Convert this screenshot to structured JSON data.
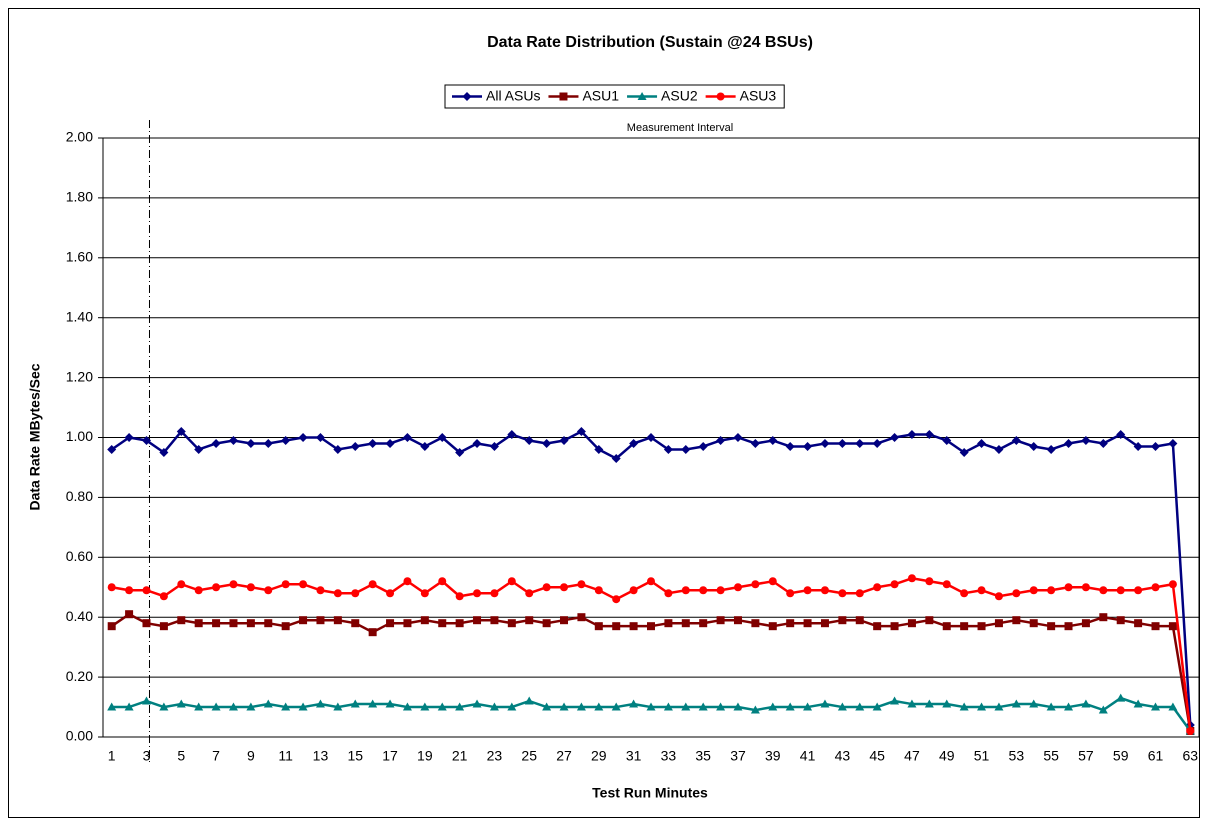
{
  "chart_data": {
    "type": "line",
    "title": "Data Rate Distribution (Sustain @24 BSUs)",
    "x_label": "Test Run Minutes",
    "y_label": "Data Rate MBytes/Sec",
    "annotation": {
      "text": "Measurement Interval",
      "x": "3"
    },
    "categories": [
      "1",
      null,
      "3",
      null,
      "5",
      null,
      "7",
      null,
      "9",
      null,
      "11",
      null,
      "13",
      null,
      "15",
      null,
      "17",
      null,
      "19",
      null,
      "21",
      null,
      "23",
      null,
      "25",
      null,
      "27",
      null,
      "29",
      null,
      "31",
      null,
      "33",
      null,
      "35",
      null,
      "37",
      null,
      "39",
      null,
      "41",
      null,
      "43",
      null,
      "45",
      null,
      "47",
      null,
      "49",
      null,
      "51",
      null,
      "53",
      null,
      "55",
      null,
      "57",
      null,
      "59",
      null,
      "61",
      null,
      "63"
    ],
    "ylim": [
      0,
      2
    ],
    "yticks": [
      {
        "value": 0,
        "label": "0.00"
      },
      {
        "value": 0.2,
        "label": "0.20"
      },
      {
        "value": 0.4,
        "label": "0.40"
      },
      {
        "value": 0.6,
        "label": "0.60"
      },
      {
        "value": 0.8,
        "label": "0.80"
      },
      {
        "value": 1,
        "label": "1.00"
      },
      {
        "value": 1.2,
        "label": "1.20"
      },
      {
        "value": 1.4,
        "label": "1.40"
      },
      {
        "value": 1.6,
        "label": "1.60"
      },
      {
        "value": 1.8,
        "label": "1.80"
      },
      {
        "value": 2,
        "label": "2.00"
      }
    ],
    "grid": true,
    "legend": "top",
    "series": [
      {
        "name": "All ASUs",
        "color": "#000080",
        "marker": "diamond",
        "values": [
          0.96,
          1.0,
          0.99,
          0.95,
          1.02,
          0.96,
          0.98,
          0.99,
          0.98,
          0.98,
          0.99,
          1.0,
          1.0,
          0.96,
          0.97,
          0.98,
          0.98,
          1.0,
          0.97,
          1.0,
          0.95,
          0.98,
          0.97,
          1.01,
          0.99,
          0.98,
          0.99,
          1.02,
          0.96,
          0.93,
          0.98,
          1.0,
          0.96,
          0.96,
          0.97,
          0.99,
          1.0,
          0.98,
          0.99,
          0.97,
          0.97,
          0.98,
          0.98,
          0.98,
          0.98,
          1.0,
          1.01,
          1.01,
          0.99,
          0.95,
          0.98,
          0.96,
          0.99,
          0.97,
          0.96,
          0.98,
          0.99,
          0.98,
          1.01,
          0.97,
          0.97,
          0.98,
          0.04
        ]
      },
      {
        "name": "ASU1",
        "color": "#800000",
        "marker": "square",
        "values": [
          0.37,
          0.41,
          0.38,
          0.37,
          0.39,
          0.38,
          0.38,
          0.38,
          0.38,
          0.38,
          0.37,
          0.39,
          0.39,
          0.39,
          0.38,
          0.35,
          0.38,
          0.38,
          0.39,
          0.38,
          0.38,
          0.39,
          0.39,
          0.38,
          0.39,
          0.38,
          0.39,
          0.4,
          0.37,
          0.37,
          0.37,
          0.37,
          0.38,
          0.38,
          0.38,
          0.39,
          0.39,
          0.38,
          0.37,
          0.38,
          0.38,
          0.38,
          0.39,
          0.39,
          0.37,
          0.37,
          0.38,
          0.39,
          0.37,
          0.37,
          0.37,
          0.38,
          0.39,
          0.38,
          0.37,
          0.37,
          0.38,
          0.4,
          0.39,
          0.38,
          0.37,
          0.37,
          0.02
        ]
      },
      {
        "name": "ASU2",
        "color": "#008080",
        "marker": "triangle",
        "values": [
          0.1,
          0.1,
          0.12,
          0.1,
          0.11,
          0.1,
          0.1,
          0.1,
          0.1,
          0.11,
          0.1,
          0.1,
          0.11,
          0.1,
          0.11,
          0.11,
          0.11,
          0.1,
          0.1,
          0.1,
          0.1,
          0.11,
          0.1,
          0.1,
          0.12,
          0.1,
          0.1,
          0.1,
          0.1,
          0.1,
          0.11,
          0.1,
          0.1,
          0.1,
          0.1,
          0.1,
          0.1,
          0.09,
          0.1,
          0.1,
          0.1,
          0.11,
          0.1,
          0.1,
          0.1,
          0.12,
          0.11,
          0.11,
          0.11,
          0.1,
          0.1,
          0.1,
          0.11,
          0.11,
          0.1,
          0.1,
          0.11,
          0.09,
          0.13,
          0.11,
          0.1,
          0.1,
          0.02
        ]
      },
      {
        "name": "ASU3",
        "color": "#ff0000",
        "marker": "circle",
        "values": [
          0.5,
          0.49,
          0.49,
          0.47,
          0.51,
          0.49,
          0.5,
          0.51,
          0.5,
          0.49,
          0.51,
          0.51,
          0.49,
          0.48,
          0.48,
          0.51,
          0.48,
          0.52,
          0.48,
          0.52,
          0.47,
          0.48,
          0.48,
          0.52,
          0.48,
          0.5,
          0.5,
          0.51,
          0.49,
          0.46,
          0.49,
          0.52,
          0.48,
          0.49,
          0.49,
          0.49,
          0.5,
          0.51,
          0.52,
          0.48,
          0.49,
          0.49,
          0.48,
          0.48,
          0.5,
          0.51,
          0.53,
          0.52,
          0.51,
          0.48,
          0.49,
          0.47,
          0.48,
          0.49,
          0.49,
          0.5,
          0.5,
          0.49,
          0.49,
          0.49,
          0.5,
          0.51,
          0.02
        ]
      }
    ]
  }
}
